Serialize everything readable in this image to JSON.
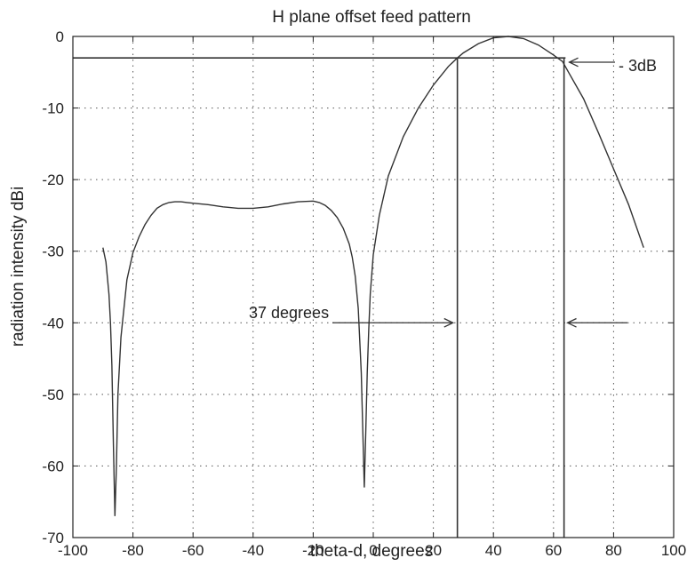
{
  "chart_data": {
    "type": "line",
    "title": "H plane offset feed pattern",
    "xlabel": "theta-d, degrees",
    "ylabel": "radiation intensity dBi",
    "xlim": [
      -100,
      100
    ],
    "ylim": [
      -70,
      0
    ],
    "xticks": [
      -100,
      -80,
      -60,
      -40,
      -20,
      0,
      20,
      40,
      60,
      80,
      100
    ],
    "yticks": [
      0,
      -10,
      -20,
      -30,
      -40,
      -50,
      -60,
      -70
    ],
    "grid": true,
    "series": [
      {
        "x": [
          -90,
          -89,
          -88,
          -87.5,
          -87,
          -86.5,
          -86,
          -85.5,
          -85,
          -84,
          -82,
          -80,
          -78,
          -76,
          -74,
          -72,
          -70,
          -68,
          -66,
          -64,
          -62,
          -60,
          -55,
          -50,
          -45,
          -40,
          -35,
          -30,
          -25,
          -20,
          -18,
          -16,
          -14,
          -12,
          -10,
          -8,
          -7,
          -6,
          -5,
          -4,
          -3.5,
          -3,
          -2.5,
          -2,
          -1.5,
          -1,
          0,
          2,
          5,
          10,
          15,
          20,
          25,
          28,
          30,
          35,
          40,
          45,
          50,
          55,
          60,
          63,
          65,
          70,
          75,
          80,
          85,
          90
        ],
        "y": [
          -29.5,
          -31.5,
          -36,
          -40,
          -46,
          -57,
          -67,
          -60,
          -50,
          -42,
          -34,
          -30.2,
          -28,
          -26.3,
          -25,
          -24,
          -23.5,
          -23.2,
          -23.1,
          -23.1,
          -23.2,
          -23.3,
          -23.5,
          -23.8,
          -24,
          -24,
          -23.8,
          -23.4,
          -23.1,
          -23,
          -23.2,
          -23.6,
          -24.3,
          -25.3,
          -26.8,
          -29,
          -30.8,
          -33.5,
          -38,
          -47,
          -55,
          -63,
          -55,
          -47,
          -41,
          -36,
          -30.5,
          -25,
          -19.5,
          -14,
          -10,
          -6.8,
          -4.2,
          -3,
          -2.3,
          -1,
          -0.2,
          0,
          -0.3,
          -1.2,
          -2.6,
          -3.5,
          -5,
          -8.7,
          -13.5,
          -18.5,
          -23.5,
          -29.5
        ]
      }
    ],
    "reference_lines": {
      "minus3db_level": -3,
      "x_start": -100,
      "x_end": 64,
      "left_marker_x": 28,
      "right_marker_x": 63.5
    },
    "annotations": [
      {
        "text": "- 3dB"
      },
      {
        "text": "37 degrees"
      }
    ]
  }
}
